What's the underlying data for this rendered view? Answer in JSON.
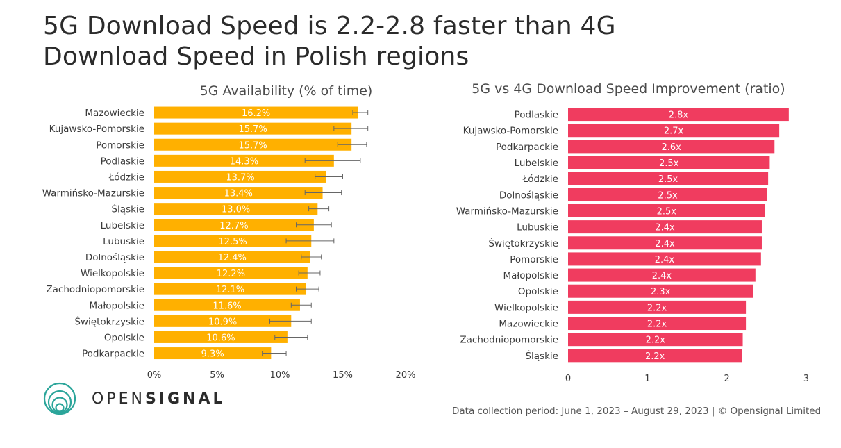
{
  "title": "5G Download Speed is 2.2-2.8 faster than 4G Download Speed in Polish regions",
  "colors": {
    "left_bar": "#FFB000",
    "right_bar": "#F03C5F",
    "error_bar": "#666666",
    "logo": "#2BA59A"
  },
  "logo": {
    "text_light": "OPEN",
    "text_bold": "SIGNAL",
    "icon": "opensignal-logo-icon"
  },
  "footer": {
    "note": "Data collection period: June 1, 2023 – August 29, 2023 | © Opensignal Limited"
  },
  "chart_data": [
    {
      "type": "bar",
      "orientation": "horizontal",
      "title": "5G Availability (% of time)",
      "categories": [
        "Mazowieckie",
        "Kujawsko-Pomorskie",
        "Pomorskie",
        "Podlaskie",
        "Łódzkie",
        "Warmińsko-Mazurskie",
        "Śląskie",
        "Lubelskie",
        "Lubuskie",
        "Dolnośląskie",
        "Wielkopolskie",
        "Zachodniopomorskie",
        "Małopolskie",
        "Świętokrzyskie",
        "Opolskie",
        "Podkarpackie"
      ],
      "values": [
        16.2,
        15.7,
        15.7,
        14.3,
        13.7,
        13.4,
        13.0,
        12.7,
        12.5,
        12.4,
        12.2,
        12.1,
        11.6,
        10.9,
        10.6,
        9.3
      ],
      "value_labels": [
        "16.2%",
        "15.7%",
        "15.7%",
        "14.3%",
        "13.7%",
        "13.4%",
        "13.0%",
        "12.7%",
        "12.5%",
        "12.4%",
        "12.2%",
        "12.1%",
        "11.6%",
        "10.9%",
        "10.6%",
        "9.3%"
      ],
      "error_low": [
        15.8,
        14.3,
        14.6,
        12.0,
        12.8,
        12.0,
        12.3,
        11.3,
        10.5,
        11.7,
        11.5,
        11.3,
        10.9,
        9.2,
        9.6,
        8.6
      ],
      "error_high": [
        17.0,
        17.0,
        16.9,
        16.4,
        15.0,
        14.9,
        13.9,
        14.1,
        14.3,
        13.3,
        13.2,
        13.1,
        12.5,
        12.5,
        12.2,
        10.5
      ],
      "xlim": [
        0,
        20
      ],
      "xticks": [
        "0%",
        "5%",
        "10%",
        "15%",
        "20%"
      ]
    },
    {
      "type": "bar",
      "orientation": "horizontal",
      "title": "5G vs 4G Download Speed Improvement (ratio)",
      "categories": [
        "Podlaskie",
        "Kujawsko-Pomorskie",
        "Podkarpackie",
        "Lubelskie",
        "Łódzkie",
        "Dolnośląskie",
        "Warmińsko-Mazurskie",
        "Lubuskie",
        "Świętokrzyskie",
        "Pomorskie",
        "Małopolskie",
        "Opolskie",
        "Wielkopolskie",
        "Mazowieckie",
        "Zachodniopomorskie",
        "Śląskie"
      ],
      "values": [
        2.78,
        2.66,
        2.6,
        2.54,
        2.52,
        2.51,
        2.48,
        2.44,
        2.44,
        2.43,
        2.36,
        2.33,
        2.24,
        2.24,
        2.2,
        2.19
      ],
      "value_labels": [
        "2.8x",
        "2.7x",
        "2.6x",
        "2.5x",
        "2.5x",
        "2.5x",
        "2.5x",
        "2.4x",
        "2.4x",
        "2.4x",
        "2.4x",
        "2.3x",
        "2.2x",
        "2.2x",
        "2.2x",
        "2.2x"
      ],
      "xlim": [
        0,
        3
      ],
      "xticks": [
        "0",
        "1",
        "2",
        "3"
      ]
    }
  ]
}
